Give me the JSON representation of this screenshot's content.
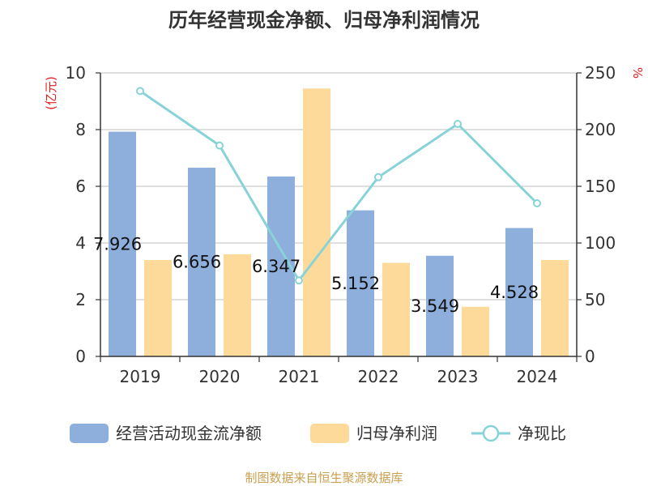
{
  "chart_data": {
    "type": "bar",
    "title": "历年经营现金净额、归母净利润情况",
    "categories": [
      "2019",
      "2020",
      "2021",
      "2022",
      "2023",
      "2024"
    ],
    "series": [
      {
        "name": "经营活动现金流净额",
        "type": "bar",
        "axis": "left",
        "values": [
          7.926,
          6.656,
          6.347,
          5.152,
          3.549,
          4.528
        ],
        "data_labels": [
          "7.926",
          "6.656",
          "6.347",
          "5.152",
          "3.549",
          "4.528"
        ],
        "color": "#8eaedc"
      },
      {
        "name": "归母净利润",
        "type": "bar",
        "axis": "left",
        "values": [
          3.4,
          3.6,
          9.45,
          3.3,
          1.75,
          3.4
        ],
        "color": "#fdd99a"
      },
      {
        "name": "净现比",
        "type": "line",
        "axis": "right",
        "values": [
          234,
          186,
          67,
          158,
          205,
          135
        ],
        "color": "#88d3d8"
      }
    ],
    "ylabel": "(亿元)",
    "y2label": "%",
    "ylim": [
      0,
      10
    ],
    "yticks": [
      "0",
      "2",
      "4",
      "6",
      "8",
      "10"
    ],
    "y2lim": [
      0,
      250
    ],
    "y2ticks": [
      "0",
      "50",
      "100",
      "150",
      "200",
      "250"
    ],
    "grid": true,
    "legend_position": "bottom",
    "axis_label_color": "#e01e1e",
    "source": "制图数据来自恒生聚源数据库",
    "source_color": "#c8a050"
  }
}
